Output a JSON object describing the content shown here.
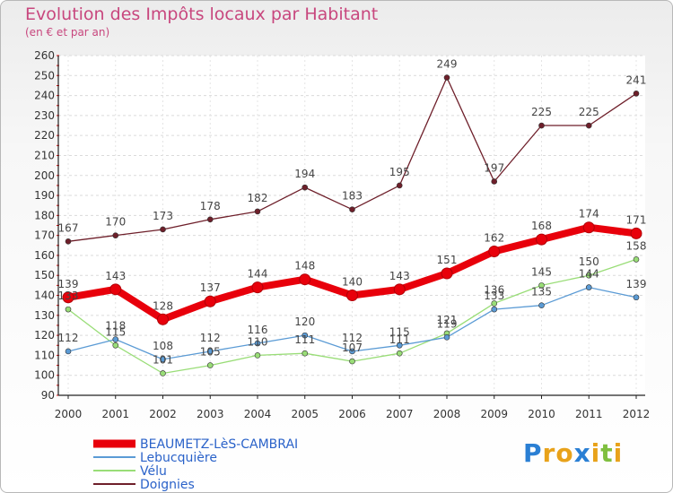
{
  "header": {
    "title": "Evolution des Impôts locaux par Habitant",
    "subtitle": "(en € et par an)"
  },
  "logo": {
    "letters": [
      "P",
      "r",
      "o",
      "x",
      "i",
      "t",
      "i"
    ]
  },
  "colors": {
    "title": "#c8477e",
    "logo": [
      "#2a7fd4",
      "#e8a21a",
      "#e8a21a",
      "#2a7fd4",
      "#e8a21a",
      "#7fbf3f",
      "#e8a21a"
    ]
  },
  "chart_data": {
    "type": "line",
    "title": "Evolution des Impôts locaux par Habitant",
    "subtitle": "(en € et par an)",
    "x": [
      "2000",
      "2001",
      "2002",
      "2003",
      "2004",
      "2005",
      "2006",
      "2007",
      "2008",
      "2009",
      "2010",
      "2011",
      "2012"
    ],
    "ylim": [
      90,
      260
    ],
    "yticks": [
      90,
      100,
      110,
      120,
      130,
      140,
      150,
      160,
      170,
      180,
      190,
      200,
      210,
      220,
      230,
      240,
      250,
      260
    ],
    "grid": true,
    "legend_position": "bottom-left",
    "series": [
      {
        "name": "BEAUMETZ-LèS-CAMBRAI",
        "color": "#e8000b",
        "values": [
          139,
          143,
          128,
          137,
          144,
          148,
          140,
          143,
          151,
          162,
          168,
          174,
          171
        ],
        "labels": true
      },
      {
        "name": "Lebucquière",
        "color": "#5b9bd5",
        "values": [
          112,
          118,
          108,
          112,
          116,
          120,
          112,
          115,
          119,
          133,
          135,
          144,
          139
        ],
        "labels": true
      },
      {
        "name": "Vélu",
        "color": "#99dd77",
        "values": [
          133,
          115,
          101,
          105,
          110,
          111,
          107,
          111,
          121,
          136,
          145,
          150,
          158
        ],
        "labels": true
      },
      {
        "name": "Doignies",
        "color": "#6e1f2a",
        "values": [
          167,
          170,
          173,
          178,
          182,
          194,
          183,
          195,
          249,
          197,
          225,
          225,
          241
        ],
        "labels": true
      }
    ],
    "data_labels": {
      "BEAUMETZ-LèS-CAMBRAI": [
        "139",
        "143",
        "128",
        "137",
        "144",
        "148",
        "140",
        "143",
        "151",
        "162",
        "168",
        "174",
        "171"
      ],
      "Lebucquière": [
        "112",
        "118",
        "108",
        "112",
        "116",
        "120",
        "112",
        "115",
        "119",
        "133",
        "135",
        "144",
        "139"
      ],
      "Vélu": [
        "133",
        "115",
        "101",
        "105",
        "110",
        "111",
        "107",
        "111",
        "121",
        "136",
        "145",
        "150",
        "158"
      ],
      "Doignies": [
        "167",
        "170",
        "173",
        "178",
        "182",
        "194",
        "183",
        "195",
        "249",
        "197",
        "225",
        "225",
        "241"
      ]
    }
  }
}
